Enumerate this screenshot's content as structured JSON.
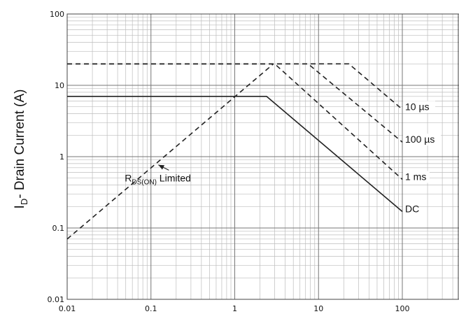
{
  "chart_data": {
    "type": "line",
    "title": "",
    "xlabel": "",
    "ylabel": {
      "main": "I",
      "sub": "D",
      "rest": "- Drain Current (A)"
    },
    "x_scale": "log",
    "y_scale": "log",
    "xlim": [
      0.01,
      600
    ],
    "ylim": [
      0.01,
      100
    ],
    "x_ticks": [
      {
        "value": 0.01,
        "label": "0.01"
      },
      {
        "value": 0.1,
        "label": "0.1"
      },
      {
        "value": 1,
        "label": "1"
      },
      {
        "value": 10,
        "label": "10"
      },
      {
        "value": 100,
        "label": "100"
      }
    ],
    "y_ticks": [
      {
        "value": 100,
        "label": "100"
      },
      {
        "value": 10,
        "label": "10"
      },
      {
        "value": 1,
        "label": "1"
      },
      {
        "value": 0.1,
        "label": "0.1"
      },
      {
        "value": 0.01,
        "label": "0.01"
      }
    ],
    "grid": true,
    "legend": "none",
    "series": [
      {
        "label": "10 µs",
        "style": "dashed",
        "points": [
          [
            0.01,
            20
          ],
          [
            23,
            20
          ],
          [
            100,
            4.6
          ]
        ]
      },
      {
        "label": "100 µs",
        "style": "dashed",
        "points": [
          [
            0.01,
            20
          ],
          [
            7.5,
            20
          ],
          [
            100,
            1.6
          ]
        ]
      },
      {
        "label": "1 ms",
        "style": "dashed",
        "points": [
          [
            0.01,
            20
          ],
          [
            3,
            20
          ],
          [
            100,
            0.48
          ]
        ]
      },
      {
        "label": "DC",
        "style": "solid",
        "points": [
          [
            0.01,
            7
          ],
          [
            2.4,
            7
          ],
          [
            100,
            0.17
          ]
        ]
      },
      {
        "label": "R_DS(ON) Limited",
        "style": "dashed",
        "points": [
          [
            0.01,
            0.07
          ],
          [
            2.9,
            20
          ]
        ]
      }
    ],
    "annotations": [
      {
        "id": "10us",
        "text": "10 µs",
        "x": 108,
        "y": 4.6
      },
      {
        "id": "100us",
        "text": "100 µs",
        "x": 108,
        "y": 1.6
      },
      {
        "id": "1ms",
        "text": "1 ms",
        "x": 108,
        "y": 0.48
      },
      {
        "id": "dc",
        "text": "DC",
        "x": 108,
        "y": 0.17
      },
      {
        "id": "rds",
        "main": "R",
        "sub": "DS(ON)",
        "rest": " Limited",
        "x": 0.14,
        "y": 0.3,
        "arrow_to": [
          0.125,
          0.82
        ]
      }
    ]
  }
}
